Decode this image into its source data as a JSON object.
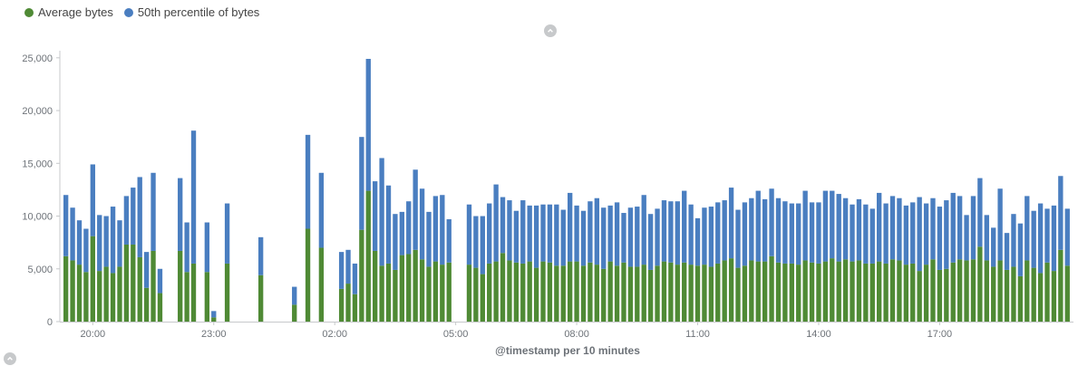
{
  "legend": [
    {
      "label": "Average bytes",
      "color": "#4f8a35"
    },
    {
      "label": "50th percentile of bytes",
      "color": "#4a7ec0"
    }
  ],
  "icons": {
    "top_toggle": "chevron-up-icon",
    "bottom_toggle": "chevron-up-icon"
  },
  "chart_data": {
    "type": "bar",
    "stacked": true,
    "x_label": "@timestamp per 10 minutes",
    "x_start": "19:20",
    "interval_minutes": 10,
    "x_tick_labels": [
      "20:00",
      "23:00",
      "02:00",
      "05:00",
      "08:00",
      "11:00",
      "14:00",
      "17:00"
    ],
    "y_tick_labels": [
      "0",
      "5,000",
      "10,000",
      "15,000",
      "20,000",
      "25,000"
    ],
    "ylim": [
      0,
      25500
    ],
    "grid": false,
    "legend_position": "top-left",
    "series": [
      {
        "name": "Average bytes",
        "color": "#4f8a35",
        "values": [
          6200,
          5800,
          5400,
          4700,
          8100,
          4800,
          5200,
          4600,
          5200,
          7300,
          7300,
          6100,
          3200,
          6700,
          2700,
          null,
          null,
          6700,
          4700,
          5500,
          null,
          4700,
          400,
          null,
          5500,
          null,
          null,
          null,
          null,
          4400,
          null,
          null,
          null,
          null,
          1600,
          null,
          8800,
          null,
          7000,
          null,
          null,
          3100,
          3600,
          2600,
          8700,
          12400,
          6700,
          5300,
          5500,
          4900,
          6300,
          6400,
          6800,
          5900,
          5200,
          5700,
          5400,
          5600,
          null,
          null,
          5400,
          5100,
          4500,
          5500,
          5700,
          6500,
          5800,
          5600,
          5500,
          5700,
          5100,
          5700,
          5600,
          5300,
          5300,
          5700,
          5700,
          5300,
          5600,
          5400,
          5000,
          5700,
          5300,
          5600,
          5200,
          5200,
          5400,
          4900,
          5300,
          5700,
          5600,
          5400,
          5600,
          5400,
          5300,
          5400,
          5200,
          5500,
          5800,
          6000,
          5100,
          5300,
          5800,
          5700,
          5700,
          6200,
          5600,
          5500,
          5500,
          5400,
          5800,
          5600,
          5500,
          5700,
          6000,
          5700,
          5900,
          5700,
          5800,
          5500,
          5500,
          5700,
          5500,
          5900,
          5800,
          5400,
          5500,
          4800,
          5400,
          5900,
          4900,
          5000,
          5600,
          5900,
          5800,
          5900,
          7100,
          5800,
          5200,
          5800,
          4900,
          5200,
          4300,
          5800,
          5100,
          4600,
          5600,
          4800,
          6800,
          5300
        ]
      },
      {
        "name": "50th percentile of bytes",
        "color": "#4a7ec0",
        "values": [
          5800,
          5000,
          4200,
          4100,
          6800,
          5300,
          4800,
          6300,
          4400,
          4600,
          5400,
          7600,
          3400,
          7400,
          2300,
          null,
          null,
          6900,
          4700,
          12600,
          null,
          4700,
          600,
          null,
          5700,
          null,
          null,
          null,
          null,
          3600,
          null,
          null,
          null,
          null,
          1700,
          null,
          8900,
          null,
          7100,
          null,
          null,
          3500,
          3200,
          2900,
          8800,
          12500,
          6600,
          10200,
          7400,
          5300,
          4100,
          5000,
          7600,
          6700,
          5200,
          6200,
          6600,
          4100,
          null,
          null,
          5700,
          4900,
          5500,
          5700,
          7300,
          5300,
          5700,
          4900,
          6000,
          5300,
          5900,
          5400,
          5500,
          5800,
          5300,
          6500,
          5300,
          5200,
          5800,
          6300,
          5800,
          5300,
          6000,
          4700,
          5600,
          5700,
          6600,
          5300,
          5400,
          5800,
          5800,
          6000,
          6800,
          5700,
          4500,
          5400,
          5700,
          5800,
          5700,
          6700,
          5500,
          6000,
          5900,
          6700,
          5900,
          6400,
          6100,
          5900,
          5700,
          5800,
          6600,
          5700,
          5800,
          6700,
          6400,
          6400,
          5800,
          5400,
          5800,
          5600,
          5200,
          6500,
          5700,
          6000,
          5900,
          5600,
          5800,
          7000,
          5800,
          5800,
          6000,
          6500,
          6600,
          6000,
          4300,
          6000,
          6500,
          4300,
          3700,
          6800,
          3500,
          5000,
          5000,
          6100,
          5400,
          6600,
          5100,
          6200,
          7000,
          5400
        ]
      }
    ]
  }
}
